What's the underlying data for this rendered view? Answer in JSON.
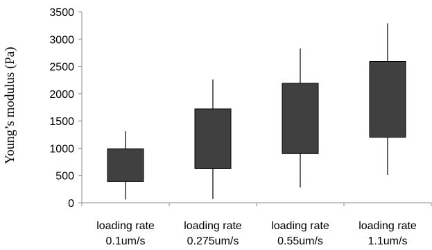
{
  "chart_data": {
    "type": "box",
    "ylabel": "Young’s modulus (Pa)",
    "xlabel": "",
    "ylim": [
      0,
      3500
    ],
    "yticks": [
      0,
      500,
      1000,
      1500,
      2000,
      2500,
      3000,
      3500
    ],
    "grid": false,
    "colors": {
      "box_fill": "#404040",
      "box_stroke": "#000000",
      "axis": "#8c8c8c"
    },
    "categories": [
      {
        "line1": "loading rate",
        "line2": "0.1um/s"
      },
      {
        "line1": "loading rate",
        "line2": "0.275um/s"
      },
      {
        "line1": "loading rate",
        "line2": "0.55um/s"
      },
      {
        "line1": "loading rate",
        "line2": "1.1um/s"
      }
    ],
    "boxes": [
      {
        "min": 60,
        "q1": 390,
        "q3": 990,
        "max": 1310
      },
      {
        "min": 70,
        "q1": 630,
        "q3": 1720,
        "max": 2260
      },
      {
        "min": 280,
        "q1": 900,
        "q3": 2190,
        "max": 2830
      },
      {
        "min": 510,
        "q1": 1200,
        "q3": 2590,
        "max": 3290
      }
    ]
  }
}
